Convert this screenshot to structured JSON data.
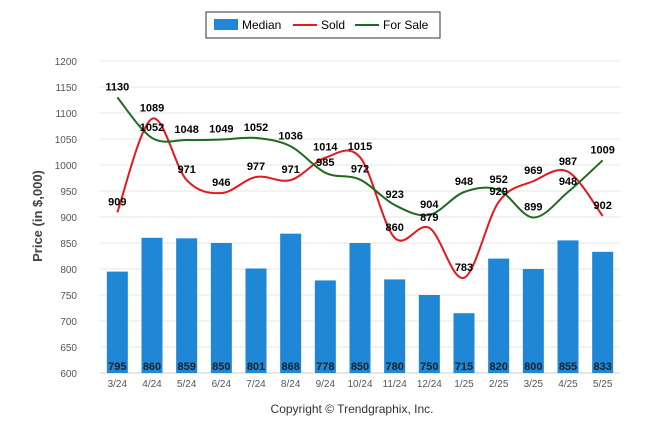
{
  "chart_data": {
    "type": "bar",
    "ylabel": "Price (in $,000)",
    "ylim": [
      600,
      1200
    ],
    "yticks": [
      600,
      650,
      700,
      750,
      800,
      850,
      900,
      950,
      1000,
      1050,
      1100,
      1150,
      1200
    ],
    "grid": true,
    "legend_position": "top-center",
    "categories": [
      "3/24",
      "4/24",
      "5/24",
      "6/24",
      "7/24",
      "8/24",
      "9/24",
      "10/24",
      "11/24",
      "12/24",
      "1/25",
      "2/25",
      "3/25",
      "4/25",
      "5/25"
    ],
    "series": [
      {
        "name": "Median",
        "type": "bar",
        "color": "#1f87d6",
        "values": [
          795,
          860,
          859,
          850,
          801,
          868,
          778,
          850,
          780,
          750,
          715,
          820,
          800,
          855,
          833
        ]
      },
      {
        "name": "Sold",
        "type": "line",
        "color": "#e3191c",
        "values": [
          909,
          1089,
          971,
          946,
          977,
          971,
          1014,
          1015,
          860,
          879,
          783,
          929,
          969,
          987,
          902
        ]
      },
      {
        "name": "For Sale",
        "type": "line",
        "color": "#1e6b1e",
        "values": [
          1130,
          1052,
          1048,
          1049,
          1052,
          1036,
          985,
          972,
          923,
          904,
          948,
          952,
          899,
          948,
          1009
        ]
      }
    ]
  },
  "footer": {
    "copyright": "Copyright © Trendgraphix, Inc."
  }
}
